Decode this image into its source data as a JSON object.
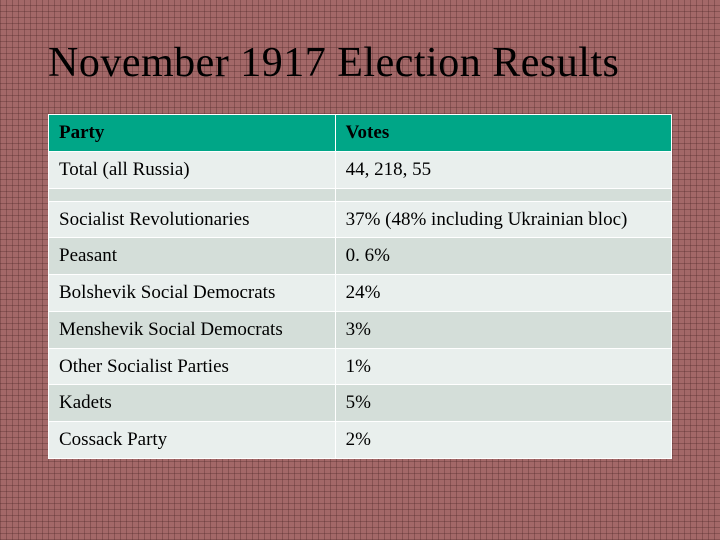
{
  "slide": {
    "title": "November 1917 Election Results",
    "table": {
      "type": "table",
      "header_bg": "#00a687",
      "row_alt_bg_light": "#e9efed",
      "row_alt_bg_dark": "#d4ded9",
      "border_color": "#ffffff",
      "col_widths_pct": [
        46,
        54
      ],
      "header_fontsize": 19,
      "cell_fontsize": 19,
      "columns": [
        "Party",
        "Votes"
      ],
      "rows": [
        [
          "Total (all Russia)",
          "44, 218, 55"
        ],
        [
          "",
          ""
        ],
        [
          "Socialist Revolutionaries",
          "37% (48% including Ukrainian bloc)"
        ],
        [
          "Peasant",
          " 0. 6%"
        ],
        [
          "Bolshevik Social Democrats",
          "24%"
        ],
        [
          "Menshevik Social Democrats",
          " 3%"
        ],
        [
          "Other Socialist Parties",
          " 1%"
        ],
        [
          "Kadets",
          " 5%"
        ],
        [
          "Cossack Party",
          " 2%"
        ]
      ]
    },
    "background_color": "#a36868",
    "title_fontsize": 42,
    "font_family": "Times New Roman"
  }
}
